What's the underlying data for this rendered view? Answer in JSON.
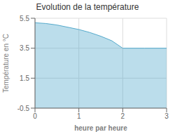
{
  "chart_data": {
    "type": "area",
    "title": "Evolution de la température",
    "xlabel": "heure par heure",
    "ylabel": "Température en °C",
    "x": [
      0,
      0.25,
      0.5,
      0.75,
      1.0,
      1.25,
      1.5,
      1.75,
      2.0,
      2.5,
      3.0
    ],
    "values": [
      5.2,
      5.15,
      5.05,
      4.9,
      4.75,
      4.55,
      4.3,
      4.0,
      3.5,
      3.5,
      3.5
    ],
    "color": "#55aacc",
    "xlim": [
      0,
      3
    ],
    "xticks": [
      0,
      1,
      2,
      3
    ],
    "ylim": [
      -0.5,
      5.5
    ],
    "yticks": [
      -0.5,
      1.5,
      3.5,
      5.5
    ],
    "grid": true
  }
}
